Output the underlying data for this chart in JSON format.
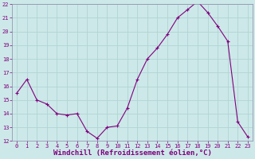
{
  "x": [
    0,
    1,
    2,
    3,
    4,
    5,
    6,
    7,
    8,
    9,
    10,
    11,
    12,
    13,
    14,
    15,
    16,
    17,
    18,
    19,
    20,
    21,
    22,
    23
  ],
  "y": [
    15.5,
    16.5,
    15.0,
    14.7,
    14.0,
    13.9,
    14.0,
    12.7,
    12.2,
    13.0,
    13.1,
    14.4,
    16.5,
    18.0,
    18.8,
    19.8,
    21.0,
    21.6,
    22.2,
    21.4,
    20.4,
    19.3,
    13.4,
    12.3
  ],
  "line_color": "#800080",
  "marker": "+",
  "marker_size": 3,
  "bg_color": "#cde8e8",
  "grid_color": "#b0d4d4",
  "xlabel": "Windchill (Refroidissement éolien,°C)",
  "ylim": [
    12,
    22
  ],
  "xlim": [
    -0.5,
    23.5
  ],
  "yticks": [
    12,
    13,
    14,
    15,
    16,
    17,
    18,
    19,
    20,
    21,
    22
  ],
  "xticks": [
    0,
    1,
    2,
    3,
    4,
    5,
    6,
    7,
    8,
    9,
    10,
    11,
    12,
    13,
    14,
    15,
    16,
    17,
    18,
    19,
    20,
    21,
    22,
    23
  ],
  "tick_color": "#800080",
  "tick_fontsize": 5,
  "xlabel_fontsize": 6.5,
  "label_color": "#800080",
  "spine_color": "#8888aa"
}
